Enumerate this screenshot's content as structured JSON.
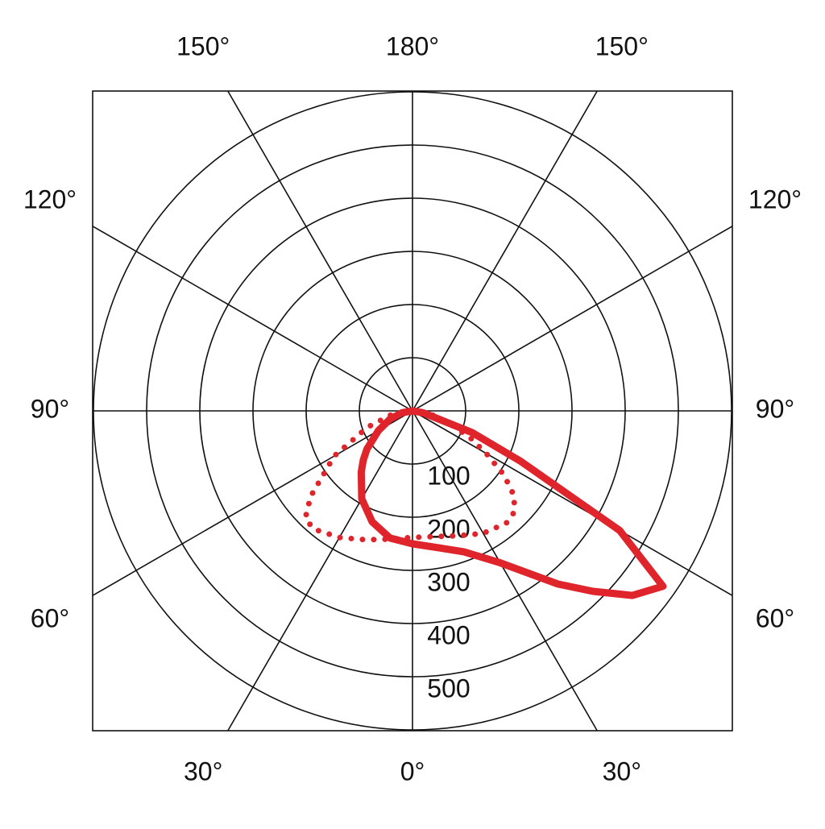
{
  "chart_data": {
    "type": "polar",
    "rlim": [
      0,
      600
    ],
    "rticks": [
      100,
      200,
      300,
      400,
      500
    ],
    "angle_ticks": [
      {
        "value": 0,
        "label": "0°"
      },
      {
        "value": 30,
        "label": "30°"
      },
      {
        "value": 60,
        "label": "60°"
      },
      {
        "value": 90,
        "label": "90°"
      },
      {
        "value": 120,
        "label": "120°"
      },
      {
        "value": 150,
        "label": "150°"
      },
      {
        "value": 180,
        "label": "180°"
      }
    ],
    "grid": true,
    "x": [
      -90,
      -80,
      -70,
      -60,
      -50,
      -45,
      -40,
      -30,
      -20,
      -10,
      0,
      10,
      20,
      30,
      40,
      45,
      50,
      55,
      60,
      65,
      70,
      80,
      90
    ],
    "series": [
      {
        "color": "#e0242b",
        "style": "solid",
        "values": [
          0,
          20,
          45,
          74,
          112,
          131,
          150,
          191,
          222,
          243,
          250,
          261,
          282,
          330,
          425,
          480,
          540,
          575,
          450,
          225,
          120,
          20,
          0
        ]
      },
      {
        "color": "#e0242b",
        "style": "dotted",
        "values": [
          0,
          40,
          90,
          170,
          250,
          285,
          290,
          275,
          258,
          245,
          238,
          240,
          250,
          266,
          275,
          270,
          250,
          210,
          160,
          120,
          80,
          35,
          0
        ]
      }
    ]
  }
}
